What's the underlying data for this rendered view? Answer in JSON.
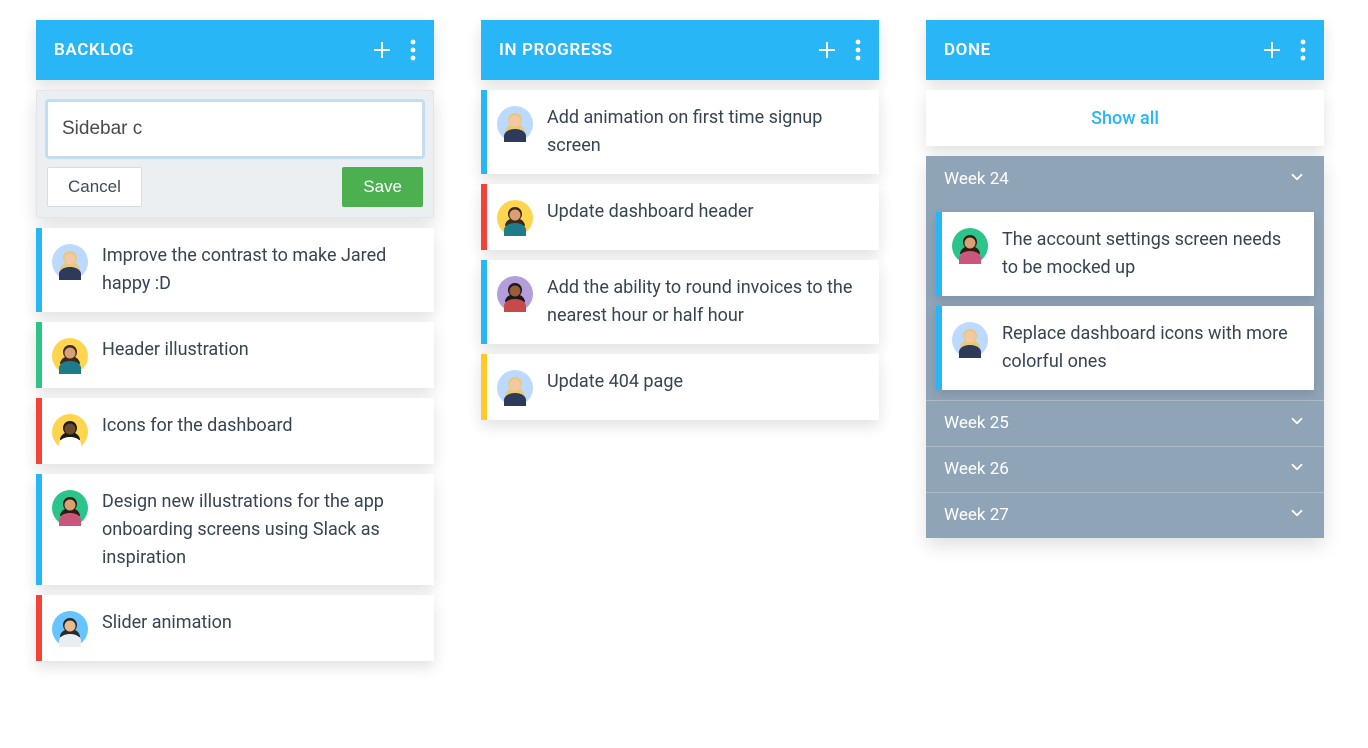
{
  "colors": {
    "column_header_bg": "#29b6f6",
    "done_section_bg": "#90a4b8",
    "save_button_bg": "#4caf50",
    "editor_bg": "#eceff1",
    "card_text": "#364453",
    "link_color": "#29b6f6",
    "stripe_blue": "#29b6f6",
    "stripe_red": "#f44336",
    "stripe_yellow": "#ffca28",
    "stripe_green": "#2bc48a"
  },
  "avatars": {
    "blonde_blue": {
      "bg": "#bcd9ff",
      "skin": "#f3c9a5",
      "hair": "#e8c97a",
      "shirt": "#2e3a59"
    },
    "brunette_yel": {
      "bg": "#ffd54f",
      "skin": "#d9a173",
      "hair": "#3b2a1a",
      "shirt": "#1e7b8c"
    },
    "man_yellow": {
      "bg": "#ffd54f",
      "skin": "#6b4a2c",
      "hair": "#1a1a1a",
      "shirt": "#ffffff"
    },
    "woman_green": {
      "bg": "#2bc48a",
      "skin": "#d9a173",
      "hair": "#2d1c12",
      "shirt": "#c9577d"
    },
    "man_blue": {
      "bg": "#66c5ff",
      "skin": "#e9b98f",
      "hair": "#2a2a2a",
      "shirt": "#e9eef3"
    },
    "woman_purple": {
      "bg": "#b39ddb",
      "skin": "#9a5d3a",
      "hair": "#1a1a1a",
      "shirt": "#c74a4a"
    }
  },
  "editor": {
    "input_value": "Sidebar c",
    "cancel_label": "Cancel",
    "save_label": "Save"
  },
  "columns": {
    "backlog": {
      "title": "BACKLOG",
      "cards": [
        {
          "avatar": "blonde_blue",
          "stripe": "stripe-blue",
          "text": "Improve the contrast to make Jared happy :D"
        },
        {
          "avatar": "brunette_yel",
          "stripe": "stripe-green",
          "text": "Header illustration"
        },
        {
          "avatar": "man_yellow",
          "stripe": "stripe-red",
          "text": "Icons for the dashboard"
        },
        {
          "avatar": "woman_green",
          "stripe": "stripe-blue",
          "text": "Design new illustrations for the app onboarding screens using Slack as inspiration"
        },
        {
          "avatar": "man_blue",
          "stripe": "stripe-red",
          "text": "Slider animation"
        }
      ]
    },
    "in_progress": {
      "title": "IN PROGRESS",
      "cards": [
        {
          "avatar": "blonde_blue",
          "stripe": "stripe-blue",
          "text": "Add animation on first time signup screen"
        },
        {
          "avatar": "brunette_yel",
          "stripe": "stripe-red",
          "text": "Update dashboard header"
        },
        {
          "avatar": "woman_purple",
          "stripe": "stripe-blue",
          "text": "Add the ability to round invoices to the nearest hour or half hour"
        },
        {
          "avatar": "blonde_blue",
          "stripe": "stripe-yellow",
          "text": "Update 404 page"
        }
      ]
    },
    "done": {
      "title": "DONE",
      "show_all_label": "Show all",
      "weeks": [
        {
          "label": "Week 24",
          "expanded": true,
          "cards": [
            {
              "avatar": "woman_green",
              "stripe": "stripe-blue",
              "text": "The account settings screen needs to be mocked up"
            },
            {
              "avatar": "blonde_blue",
              "stripe": "stripe-blue",
              "text": "Replace dashboard icons with more colorful ones"
            }
          ]
        },
        {
          "label": "Week 25",
          "expanded": false,
          "cards": []
        },
        {
          "label": "Week 26",
          "expanded": false,
          "cards": []
        },
        {
          "label": "Week 27",
          "expanded": false,
          "cards": []
        }
      ]
    }
  }
}
